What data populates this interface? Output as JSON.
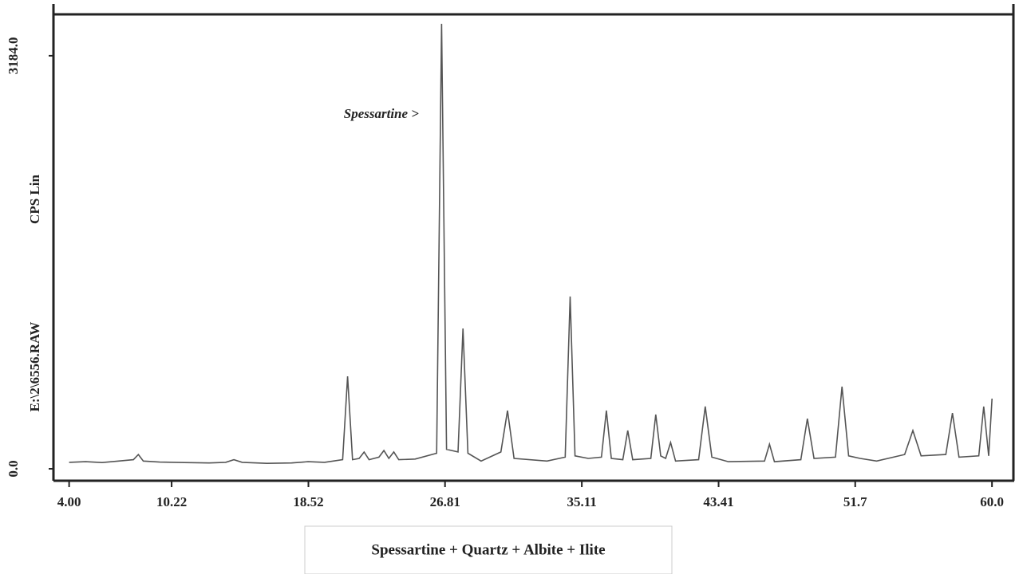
{
  "chart_data": {
    "type": "line",
    "y_label": "CPS Lin",
    "file_label": "E:\\2\\6556.RAW",
    "annotation": "Spessartine >",
    "caption": "Spessartine + Quartz + Albite + Ilite",
    "color": "#555555",
    "xlim": [
      3.05,
      61.3
    ],
    "ylim": [
      -92,
      3503
    ],
    "xticks": [
      {
        "value": 4,
        "label": "4.00"
      },
      10.22,
      18.52,
      26.81,
      35.11,
      43.41,
      51.7,
      {
        "value": 60,
        "label": "60.0"
      }
    ],
    "yticks": [
      {
        "value": 0,
        "label": "0.0"
      },
      {
        "value": 3184,
        "label": "3184.0"
      }
    ],
    "x": [
      4.0,
      5,
      6,
      7,
      7.9,
      8.2,
      8.5,
      9.5,
      11,
      12.5,
      13.5,
      14,
      14.5,
      16,
      17.5,
      18.5,
      19.5,
      20.6,
      20.9,
      21.2,
      21.6,
      21.9,
      22.2,
      22.8,
      23.1,
      23.4,
      23.7,
      24,
      25,
      26.3,
      26.6,
      26.9,
      27.6,
      27.9,
      28.2,
      29,
      30.2,
      30.6,
      31,
      33,
      34.1,
      34.4,
      34.7,
      35.5,
      36.3,
      36.6,
      36.9,
      37.6,
      37.9,
      38.2,
      39.3,
      39.6,
      39.9,
      40.2,
      40.5,
      40.8,
      42.2,
      42.6,
      43,
      44,
      46.2,
      46.5,
      46.8,
      48.4,
      48.8,
      49.2,
      50.5,
      50.9,
      51.3,
      52,
      53,
      54.7,
      55.2,
      55.7,
      57.2,
      57.6,
      58,
      59.2,
      59.5,
      59.8,
      60.0
    ],
    "values": [
      50,
      55,
      48,
      60,
      70,
      110,
      60,
      52,
      48,
      45,
      50,
      70,
      50,
      42,
      45,
      55,
      50,
      70,
      713,
      70,
      80,
      129,
      70,
      90,
      141,
      80,
      130,
      70,
      75,
      120,
      3430,
      150,
      130,
      1082,
      120,
      60,
      130,
      449,
      80,
      60,
      90,
      1328,
      100,
      80,
      90,
      449,
      80,
      70,
      295,
      70,
      80,
      418,
      100,
      80,
      203,
      60,
      70,
      480,
      90,
      55,
      60,
      190,
      55,
      70,
      387,
      80,
      90,
      633,
      100,
      80,
      60,
      110,
      295,
      100,
      110,
      430,
      90,
      100,
      480,
      100,
      541
    ]
  }
}
